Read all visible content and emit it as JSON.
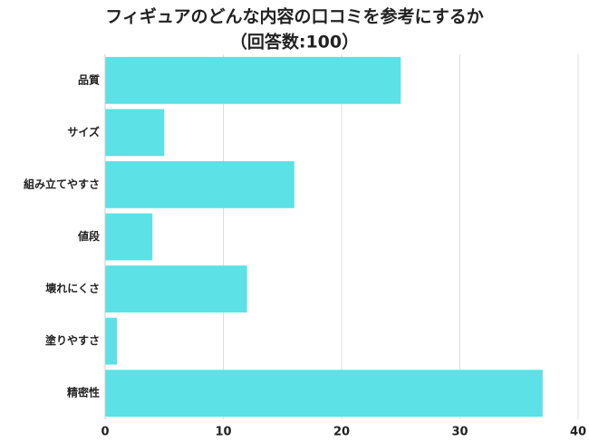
{
  "chart_data": {
    "type": "bar",
    "orientation": "horizontal",
    "title": "フィギュアのどんな内容の口コミを参考にするか",
    "subtitle": "（回答数:100）",
    "categories": [
      "品質",
      "サイズ",
      "組み立てやすさ",
      "値段",
      "壊れにくさ",
      "塗りやすさ",
      "精密性"
    ],
    "values": [
      25,
      5,
      16,
      4,
      12,
      1,
      37
    ],
    "color": "#5ce1e6",
    "xlim": [
      0,
      40
    ],
    "xticks": [
      0,
      10,
      20,
      30,
      40
    ],
    "grid": true
  }
}
